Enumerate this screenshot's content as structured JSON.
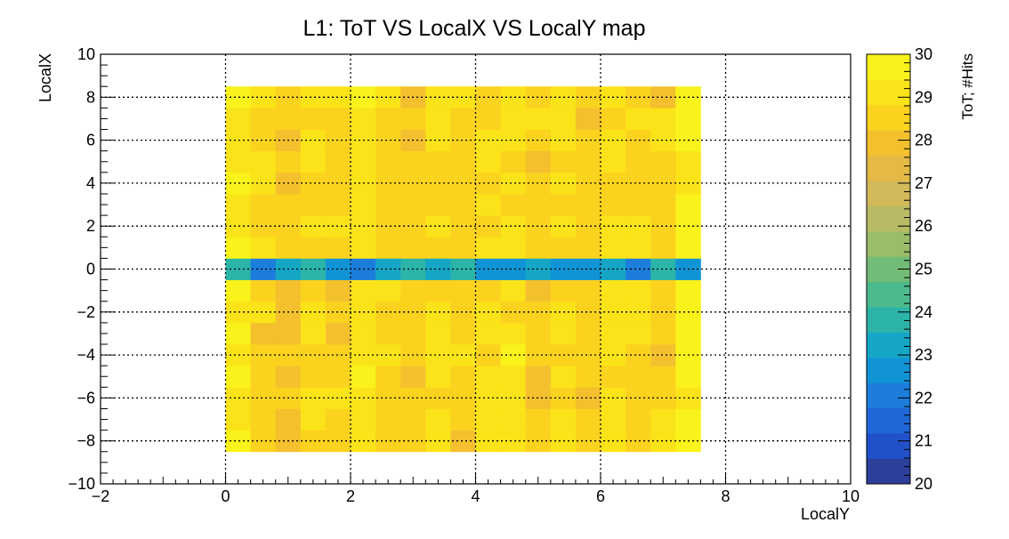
{
  "chart_data": {
    "type": "heatmap",
    "title": "L1: ToT VS LocalX VS LocalY map",
    "xlabel": "LocalY",
    "ylabel": "LocalX",
    "zlabel": "ToT; #Hits",
    "xlim": [
      -2,
      10
    ],
    "ylim": [
      -10,
      10
    ],
    "zlim": [
      20,
      30
    ],
    "x_ticks": [
      "−2",
      "0",
      "2",
      "4",
      "6",
      "8",
      "10"
    ],
    "y_ticks": [
      "−10",
      "−8",
      "−6",
      "−4",
      "−2",
      "0",
      "2",
      "4",
      "6",
      "8",
      "10"
    ],
    "z_ticks": [
      "20",
      "21",
      "22",
      "23",
      "24",
      "25",
      "26",
      "27",
      "28",
      "29",
      "30"
    ],
    "grid": true,
    "x_bins": {
      "start": 0.0,
      "end": 7.6,
      "count": 19
    },
    "y_bins": {
      "start": -8.5,
      "end": 8.5,
      "count": 17
    },
    "column_base": [
      29.4,
      28.6,
      28.2,
      28.9,
      28.5,
      29.2,
      28.7,
      28.4,
      29.0,
      28.6,
      28.8,
      29.1,
      28.5,
      28.9,
      28.4,
      29.0,
      28.7,
      28.6,
      29.5
    ],
    "center_row_values": [
      23.6,
      22.3,
      23.1,
      23.8,
      22.5,
      22.1,
      23.4,
      23.9,
      23.3,
      23.6,
      22.4,
      22.8,
      23.5,
      22.9,
      22.4,
      23.1,
      22.3,
      23.7,
      22.8
    ],
    "colormap": [
      "#2c3f99",
      "#2150c9",
      "#1f67d6",
      "#1c7ddb",
      "#1194d6",
      "#15a6c6",
      "#2cb4a8",
      "#4cba8c",
      "#73bc77",
      "#99bd68",
      "#b8bb63",
      "#d2b95a",
      "#e5b946",
      "#f4c02e",
      "#fbd21e",
      "#fbe319",
      "#f9f21b"
    ]
  }
}
